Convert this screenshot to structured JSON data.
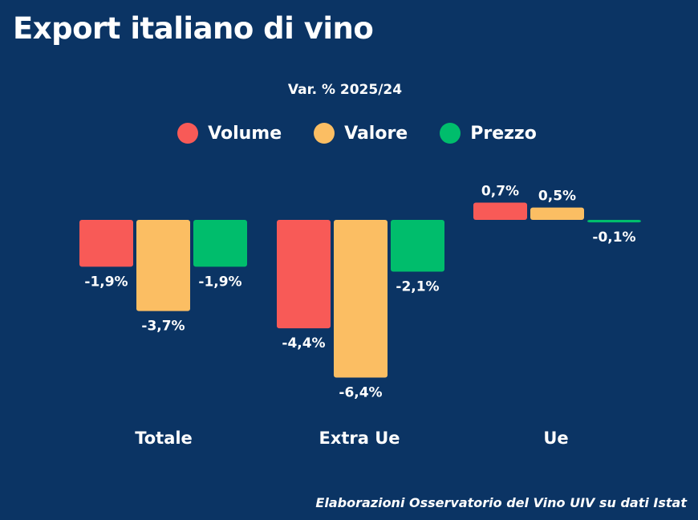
{
  "title": "Export italiano di vino",
  "subtitle": "Var. % 2025/24",
  "source": "Elaborazioni Osservatorio del Vino UIV su dati Istat",
  "colors": {
    "background": "#0b3464",
    "volume": "#f85a57",
    "valore": "#fbbe63",
    "prezzo": "#00bd6c"
  },
  "legend": [
    {
      "label": "Volume",
      "color": "#f85a57"
    },
    {
      "label": "Valore",
      "color": "#fbbe63"
    },
    {
      "label": "Prezzo",
      "color": "#00bd6c"
    }
  ],
  "chart_data": {
    "type": "bar",
    "title": "Export italiano di vino",
    "subtitle": "Var. % 2025/24",
    "categories": [
      "Totale",
      "Extra Ue",
      "Ue"
    ],
    "series": [
      {
        "name": "Volume",
        "color": "#f85a57",
        "values": [
          -1.9,
          -4.4,
          0.7
        ],
        "labels": [
          "-1,9%",
          "-4,4%",
          "0,7%"
        ]
      },
      {
        "name": "Valore",
        "color": "#fbbe63",
        "values": [
          -3.7,
          -6.4,
          0.5
        ],
        "labels": [
          "-3,7%",
          "-6,4%",
          "0,5%"
        ]
      },
      {
        "name": "Prezzo",
        "color": "#00bd6c",
        "values": [
          -1.9,
          -2.1,
          -0.1
        ],
        "labels": [
          "-1,9%",
          "-2,1%",
          "-0,1%"
        ]
      }
    ],
    "ylim": [
      -6.4,
      0.7
    ],
    "grid": false,
    "legend_position": "top-center"
  }
}
